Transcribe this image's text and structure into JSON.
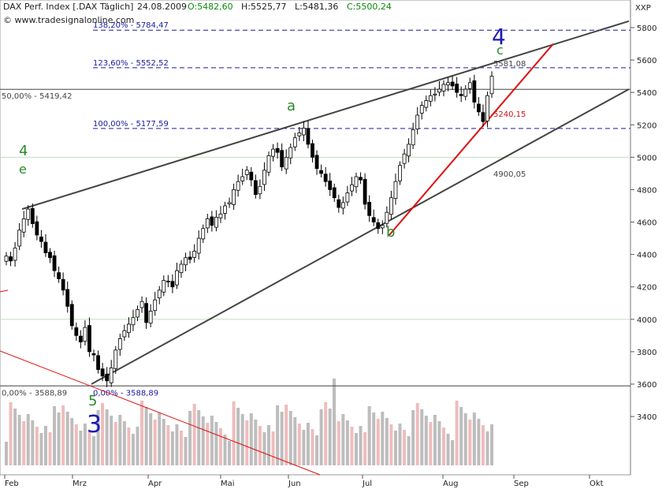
{
  "header": {
    "title": "DAX Perf. Index [.DAX  Täglich]",
    "date": "24.08.2009",
    "open": "O:5482,60",
    "high": "H:5525,77",
    "low": "L:5481,36",
    "close": "C:5500,24",
    "source": "© www.tradesignalonline.com",
    "symbol": "XXP"
  },
  "colors": {
    "up": "#2a8a2a",
    "down": "#000000",
    "fib": "#1a1aa0",
    "trend": "#444444",
    "red": "#dd1111",
    "volume_gray": "#bdbdbd",
    "volume_pink": "#efbcbc"
  },
  "chart_data": {
    "type": "candlestick",
    "y_ticks": [
      "3400",
      "3600",
      "3800",
      "4000",
      "4200",
      "4400",
      "4600",
      "4800",
      "5000",
      "5200",
      "5400",
      "5600",
      "5800"
    ],
    "x_ticks": [
      "Feb",
      "Mrz",
      "Apr",
      "Mai",
      "Jun",
      "Jul",
      "Aug",
      "Sep",
      "Okt"
    ],
    "ylim": [
      3220,
      5900
    ],
    "horizontal_levels": [
      {
        "label": "138,20% - 5784,47",
        "value": 5784.47,
        "style": "fib"
      },
      {
        "label": "123,60% - 5552,52",
        "value": 5552.52,
        "style": "fib"
      },
      {
        "label": "100,00% - 5177,59",
        "value": 5177.59,
        "style": "fib"
      },
      {
        "label": "50,00% - 5419,42",
        "value": 5419.42,
        "style": "solid"
      },
      {
        "label": "0,00% - 3588,89",
        "value": 3588.89,
        "style": "solid"
      },
      {
        "label": "0,00% - 3588,89",
        "value": 3588.89,
        "style": "fib-label"
      }
    ],
    "value_labels": [
      {
        "text": "5581,08",
        "value": 5581.08,
        "color": "gray"
      },
      {
        "text": "5240,15",
        "value": 5240.15,
        "color": "red"
      },
      {
        "text": "4900,05",
        "value": 4900.05,
        "color": "gray"
      }
    ],
    "wave_labels": [
      {
        "text": "4",
        "color": "green"
      },
      {
        "text": "e",
        "color": "green"
      },
      {
        "text": "a",
        "color": "green"
      },
      {
        "text": "b",
        "color": "green"
      },
      {
        "text": "c",
        "color": "green"
      },
      {
        "text": "4",
        "color": "blue"
      },
      {
        "text": "5",
        "color": "green"
      },
      {
        "text": "3",
        "color": "blue"
      }
    ],
    "close": [
      4390,
      4360,
      4440,
      4550,
      4620,
      4680,
      4590,
      4520,
      4480,
      4410,
      4380,
      4300,
      4250,
      4180,
      4080,
      3960,
      3900,
      3860,
      3950,
      3800,
      3780,
      3690,
      3650,
      3620,
      3700,
      3810,
      3880,
      3930,
      3970,
      4010,
      4060,
      4110,
      3980,
      4050,
      4120,
      4180,
      4240,
      4230,
      4200,
      4300,
      4340,
      4380,
      4370,
      4420,
      4500,
      4560,
      4620,
      4580,
      4630,
      4650,
      4700,
      4720,
      4800,
      4850,
      4880,
      4920,
      4860,
      4770,
      4820,
      4920,
      5010,
      5050,
      5030,
      4940,
      5000,
      5060,
      5120,
      5150,
      5180,
      5080,
      5000,
      4930,
      4900,
      4850,
      4800,
      4750,
      4690,
      4720,
      4780,
      4830,
      4880,
      4860,
      4710,
      4640,
      4600,
      4560,
      4580,
      4660,
      4750,
      4850,
      4950,
      5020,
      5080,
      5170,
      5260,
      5320,
      5350,
      5380,
      5390,
      5420,
      5450,
      5460,
      5440,
      5400,
      5380,
      5420,
      5460,
      5340,
      5280,
      5220,
      5380,
      5500
    ]
  },
  "volume": {
    "ylim": [
      3220,
      5900
    ],
    "scale": "overlay"
  }
}
